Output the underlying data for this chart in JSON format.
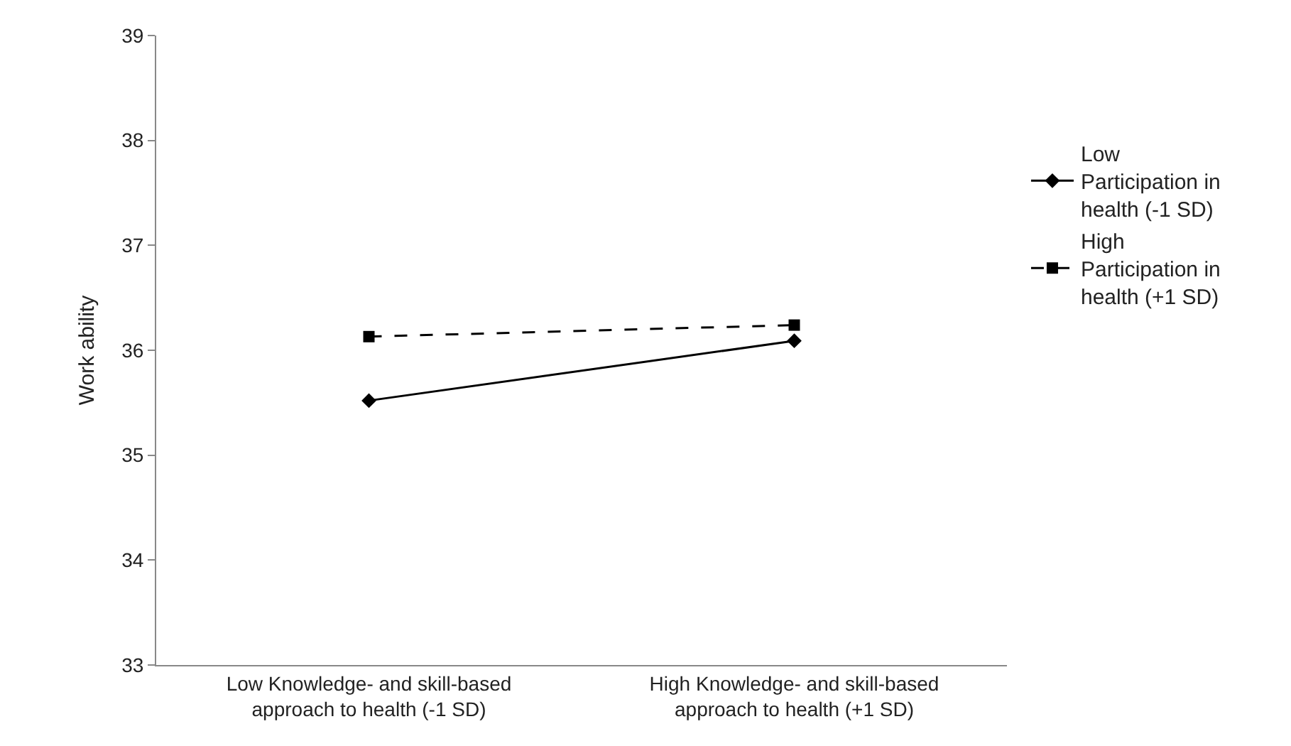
{
  "chart_data": {
    "type": "line",
    "ylabel": "Work ability",
    "categories": [
      "Low Knowledge- and skill-based approach to health (-1 SD)",
      "High Knowledge- and skill-based approach to health (+1 SD)"
    ],
    "series": [
      {
        "name": "Low Participation in health (-1 SD)",
        "color": "#000000",
        "values": [
          35.52,
          36.09
        ],
        "marker": "diamond",
        "line_style": "solid"
      },
      {
        "name": "High Participation in health (+1 SD)",
        "color": "#000000",
        "values": [
          36.13,
          36.24
        ],
        "marker": "square",
        "line_style": "dashed"
      }
    ],
    "ylim": [
      33,
      39
    ],
    "yticks": [
      33,
      34,
      35,
      36,
      37,
      38,
      39
    ],
    "legend": "right"
  }
}
